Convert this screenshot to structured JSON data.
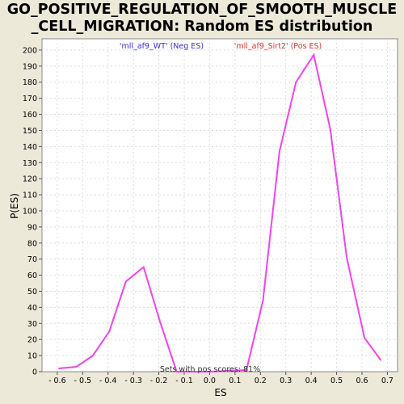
{
  "chart_data": {
    "type": "line",
    "title_lines": [
      "GO_POSITIVE_REGULATION_OF_SMOOTH_MUSCLE",
      "_CELL_MIGRATION: Random ES distribution"
    ],
    "xlabel": "ES",
    "ylabel": "P(ES)",
    "xlim": [
      -0.66,
      0.74
    ],
    "ylim": [
      0,
      207
    ],
    "x_ticks": [
      -0.6,
      -0.5,
      -0.4,
      -0.3,
      -0.2,
      -0.1,
      0.0,
      0.1,
      0.2,
      0.3,
      0.4,
      0.5,
      0.6,
      0.7
    ],
    "x_tick_labels": [
      "- 0.6",
      "- 0.5",
      "- 0.4",
      "- 0.3",
      "- 0.2",
      "- 0.1",
      "0.0",
      "0.1",
      "0.2",
      "0.3",
      "0.4",
      "0.5",
      "0.6",
      "0.7"
    ],
    "y_ticks": [
      0,
      10,
      20,
      30,
      40,
      50,
      60,
      70,
      80,
      90,
      100,
      110,
      120,
      130,
      140,
      150,
      160,
      170,
      180,
      190,
      200
    ],
    "grid": true,
    "legend": {
      "neg_label": "'mll_af9_WT' (Neg ES)",
      "pos_label": "'mll_af9_Sirt2' (Pos ES)",
      "neg_color": "#3333cc",
      "pos_color": "#dd3333",
      "placement": "top"
    },
    "annotation": "Sets with pos scores: 81%",
    "line_color": "#ee44ee",
    "series": [
      {
        "x": [
          -0.595,
          -0.525,
          -0.46,
          -0.395,
          -0.33,
          -0.26,
          -0.195,
          -0.13,
          0.0,
          0.145,
          0.21,
          0.275,
          0.34,
          0.41,
          0.475,
          0.54,
          0.61,
          0.675
        ],
        "y": [
          2,
          3,
          10,
          25,
          56,
          65,
          31,
          0,
          0,
          1,
          44,
          137,
          180,
          197,
          151,
          71,
          21,
          7
        ]
      }
    ]
  }
}
